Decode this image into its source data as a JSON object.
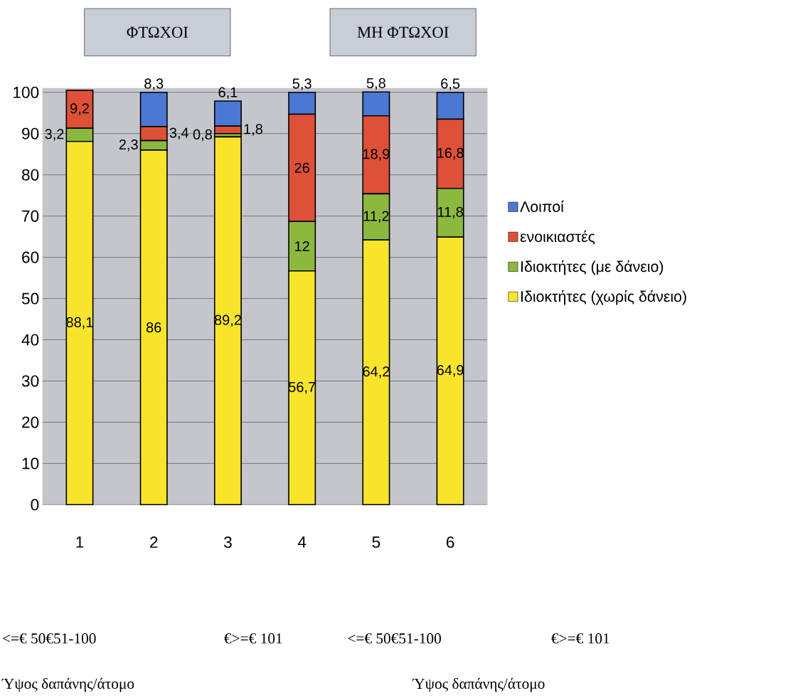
{
  "chart_data": {
    "type": "bar",
    "stacked": true,
    "categories": [
      "1",
      "2",
      "3",
      "4",
      "5",
      "6"
    ],
    "series": [
      {
        "name": "Ιδιοκτήτες (χωρίς δάνειο)",
        "color": "#f8e42a",
        "values": [
          88.1,
          86,
          89.2,
          56.7,
          64.2,
          64.9
        ],
        "value_labels": [
          "88,1",
          "86",
          "89,2",
          "56,7",
          "64,2",
          "64,9"
        ]
      },
      {
        "name": "Ιδιοκτήτες (με δάνειο)",
        "color": "#8cb83e",
        "values": [
          3.2,
          2.3,
          0.8,
          12,
          11.2,
          11.8
        ],
        "value_labels": [
          "3,2",
          "2,3",
          "0,8",
          "12",
          "11,2",
          "11,8"
        ]
      },
      {
        "name": "ενοικιαστές",
        "color": "#de5038",
        "values": [
          9.2,
          3.4,
          1.8,
          26,
          18.9,
          16.8
        ],
        "value_labels": [
          "9,2",
          "3,4",
          "1,8",
          "26",
          "18,9",
          "16,8"
        ]
      },
      {
        "name": "Λοιποί",
        "color": "#4a78d2",
        "values": [
          null,
          8.3,
          6.1,
          5.3,
          5.8,
          6.5
        ],
        "value_labels": [
          null,
          "8,3",
          "6,1",
          "5,3",
          "5,8",
          "6,5"
        ]
      }
    ],
    "ylim": [
      0,
      101
    ],
    "yticks": [
      0,
      10,
      20,
      30,
      40,
      50,
      60,
      70,
      80,
      90,
      100
    ],
    "grid": "y",
    "legend": "right",
    "annotations": [
      "ΦΤΩΧΟΙ",
      "ΜΗ ΦΤΩΧΟΙ",
      "<=€ 50€51-100",
      "€>=€ 101",
      "<=€ 50€51-100",
      "€>=€ 101",
      "Ύψος δαπάνης/άτομο",
      "Ύψος δαπάνης/άτομο"
    ]
  }
}
